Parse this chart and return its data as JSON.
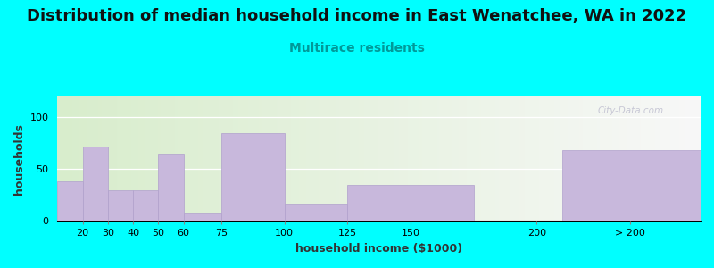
{
  "title": "Distribution of median household income in East Wenatchee, WA in 2022",
  "subtitle": "Multirace residents",
  "xlabel": "household income ($1000)",
  "ylabel": "households",
  "background_outer": "#00FFFF",
  "bar_color": "#c8b8dc",
  "bar_edgecolor": "#b0a0cc",
  "watermark": "City-Data.com",
  "bar_lefts": [
    10,
    20,
    30,
    40,
    50,
    60,
    75,
    100,
    125,
    210
  ],
  "bar_rights": [
    20,
    30,
    40,
    50,
    60,
    75,
    100,
    125,
    175,
    265
  ],
  "values": [
    38,
    72,
    30,
    30,
    65,
    8,
    85,
    17,
    35,
    68
  ],
  "xlim": [
    10,
    265
  ],
  "tick_positions": [
    20,
    30,
    40,
    50,
    60,
    75,
    100,
    125,
    150,
    200,
    237
  ],
  "tick_labels": [
    "20",
    "30",
    "40",
    "50",
    "60",
    "75",
    "100",
    "125",
    "150",
    "200",
    "> 200"
  ],
  "ylim": [
    0,
    120
  ],
  "yticks": [
    0,
    50,
    100
  ],
  "title_fontsize": 13,
  "subtitle_fontsize": 10,
  "axis_label_fontsize": 9,
  "tick_fontsize": 8
}
